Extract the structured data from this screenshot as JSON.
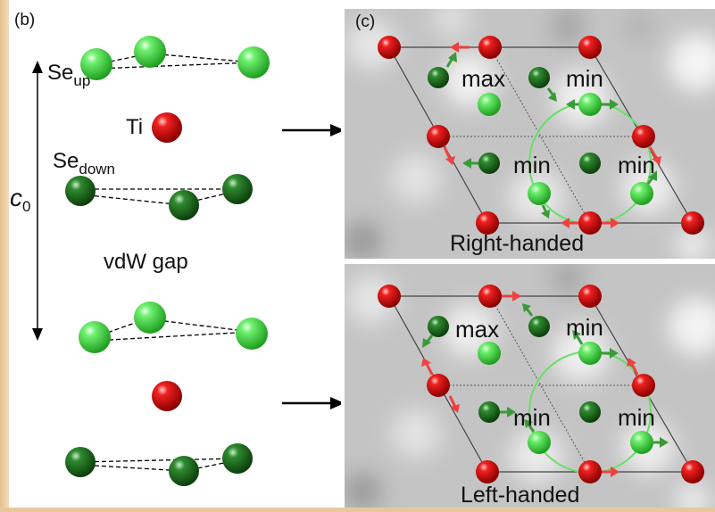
{
  "panel_b": {
    "label": "(b)",
    "se_up_main": "Se",
    "se_up_sub": "up",
    "ti": "Ti",
    "se_down_main": "Se",
    "se_down_sub": "down",
    "c0_main": "c",
    "c0_sub": "0",
    "vdw_gap": "vdW gap"
  },
  "panel_c": {
    "label": "(c)",
    "top": {
      "caption": "Right-handed",
      "labels": [
        "max",
        "min",
        "min",
        "min"
      ]
    },
    "bottom": {
      "caption": "Left-handed",
      "labels": [
        "max",
        "min",
        "min",
        "min"
      ]
    }
  },
  "colors": {
    "ti_red": "#e01010",
    "se_light_green": "#3fd83f",
    "se_dark_green": "#1a6b1a",
    "arrow_red": "#f04040",
    "arrow_green": "#3a9a3a",
    "circle_green": "#66e066"
  }
}
